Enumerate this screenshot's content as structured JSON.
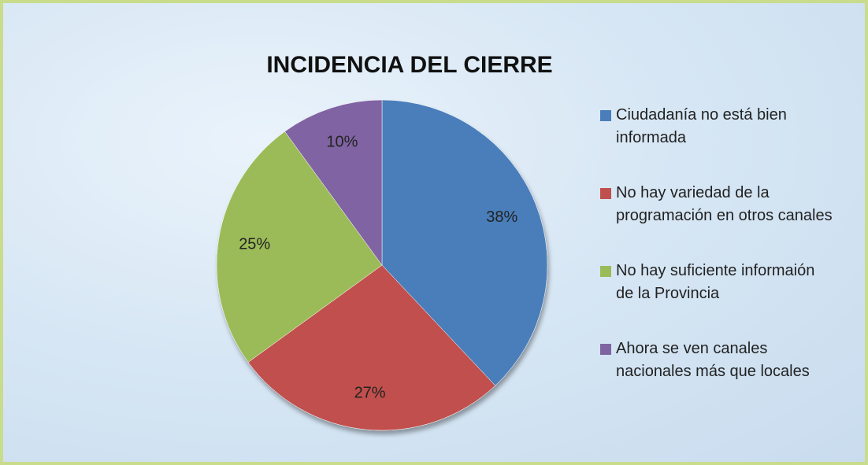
{
  "chart_data": {
    "type": "pie",
    "title": "INCIDENCIA DEL CIERRE",
    "categories": [
      "Ciudadanía no está bien informada",
      "No hay variedad de la programación en otros canales",
      "No hay suficiente informaión de la Provincia",
      "Ahora se ven canales nacionales más que locales"
    ],
    "values": [
      38,
      27,
      25,
      10
    ],
    "value_labels": [
      "38%",
      "27%",
      "25%",
      "10%"
    ],
    "colors": [
      "#4a7ebb",
      "#c0504d",
      "#9bbb59",
      "#8064a2"
    ],
    "legend": "right"
  }
}
